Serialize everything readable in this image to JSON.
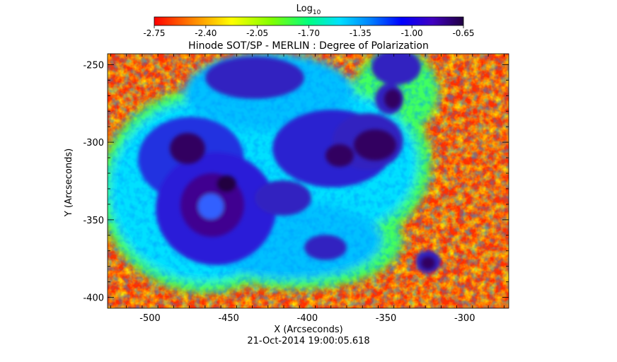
{
  "colorbar": {
    "title_main": "Log",
    "title_sub": "10",
    "tick_labels": [
      "-2.75",
      "-2.40",
      "-2.05",
      "-1.70",
      "-1.35",
      "-1.00",
      "-0.65"
    ],
    "range": [
      -2.75,
      -0.65
    ],
    "colors": [
      "#ff0000",
      "#ff8000",
      "#ffff00",
      "#80ff00",
      "#00ff80",
      "#00e0ff",
      "#0080ff",
      "#0000ff",
      "#4000c0",
      "#200040"
    ]
  },
  "plot": {
    "title": "Hinode SOT/SP - MERLIN : Degree of Polarization",
    "xlabel": "X (Arcseconds)",
    "ylabel": "Y (Arcseconds)",
    "x_ticks": [
      "-500",
      "-450",
      "-400",
      "-350",
      "-300"
    ],
    "y_ticks": [
      "-250",
      "-300",
      "-350",
      "-400"
    ],
    "x_range": [
      -527,
      -272
    ],
    "y_range": [
      -407,
      -243
    ],
    "timestamp": "21-Oct-2014 19:00:05.618"
  },
  "image_features": {
    "background": "#ff8000",
    "umbra_color": "#200040",
    "penumbra_color": "#2020d0",
    "plage_color": "#00e0ff",
    "quiet_sun_color": "#ff3000"
  }
}
